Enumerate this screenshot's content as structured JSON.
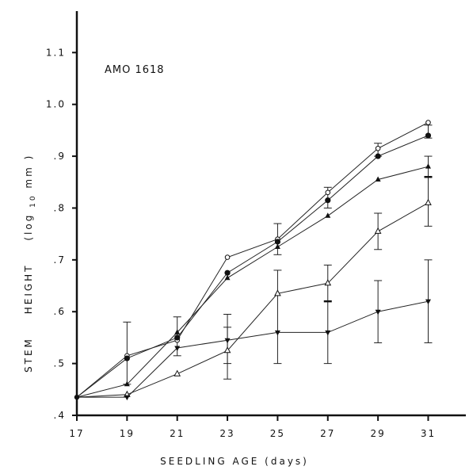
{
  "chart_data": {
    "type": "line",
    "title": "",
    "annotation": "AMO 1618",
    "xlabel": "SEEDLING   AGE (days)",
    "ylabel_parts": [
      "STEM",
      "HEIGHT",
      "(log",
      "10",
      " mm )"
    ],
    "x": [
      17,
      19,
      21,
      23,
      25,
      27,
      29,
      31
    ],
    "xlim": [
      17,
      32.5
    ],
    "ylim": [
      0.4,
      1.18
    ],
    "x_ticks": [
      17,
      19,
      21,
      23,
      25,
      27,
      29,
      31
    ],
    "y_ticks": [
      {
        "value": 0.4,
        "label": ".4"
      },
      {
        "value": 0.5,
        "label": ".5"
      },
      {
        "value": 0.6,
        "label": ".6"
      },
      {
        "value": 0.7,
        "label": ".7"
      },
      {
        "value": 0.8,
        "label": ".8"
      },
      {
        "value": 0.9,
        "label": ".9"
      },
      {
        "value": 1.0,
        "label": "1.0"
      },
      {
        "value": 1.1,
        "label": "1.1"
      }
    ],
    "grid": false,
    "legend": "none",
    "series": [
      {
        "marker": "open-circle",
        "values": [
          0.435,
          0.515,
          0.545,
          0.705,
          0.74,
          0.83,
          0.915,
          0.965
        ]
      },
      {
        "marker": "filled-circle",
        "values": [
          0.435,
          0.51,
          0.55,
          0.675,
          0.735,
          0.815,
          0.9,
          0.94
        ]
      },
      {
        "marker": "filled-triangle",
        "values": [
          0.435,
          0.46,
          0.56,
          0.665,
          0.725,
          0.785,
          0.855,
          0.88
        ]
      },
      {
        "marker": "open-triangle",
        "values": [
          0.435,
          0.44,
          0.48,
          0.525,
          0.635,
          0.655,
          0.755,
          0.81
        ]
      },
      {
        "marker": "filled-down-triangle",
        "values": [
          0.435,
          0.435,
          0.53,
          0.545,
          0.56,
          0.56,
          0.6,
          0.62
        ]
      }
    ],
    "error_bars": [
      {
        "x": 19,
        "low": 0.46,
        "high": 0.58
      },
      {
        "x": 21,
        "low": 0.515,
        "high": 0.59
      },
      {
        "x": 23,
        "low": 0.47,
        "high": 0.595
      },
      {
        "x": 23,
        "low": 0.5,
        "high": 0.57
      },
      {
        "x": 25,
        "low": 0.5,
        "high": 0.68
      },
      {
        "x": 25,
        "low": 0.71,
        "high": 0.77
      },
      {
        "x": 27,
        "low": 0.5,
        "high": 0.69
      },
      {
        "x": 27,
        "low": 0.8,
        "high": 0.84
      },
      {
        "x": 29,
        "low": 0.54,
        "high": 0.66
      },
      {
        "x": 29,
        "low": 0.72,
        "high": 0.79
      },
      {
        "x": 29,
        "low": 0.9,
        "high": 0.925
      },
      {
        "x": 31,
        "low": 0.54,
        "high": 0.7
      },
      {
        "x": 31,
        "low": 0.765,
        "high": 0.9
      },
      {
        "x": 31,
        "low": 0.935,
        "high": 0.96
      }
    ],
    "means_dash": [
      {
        "x": 27,
        "value": 0.62
      },
      {
        "x": 31,
        "value": 0.86
      }
    ]
  }
}
